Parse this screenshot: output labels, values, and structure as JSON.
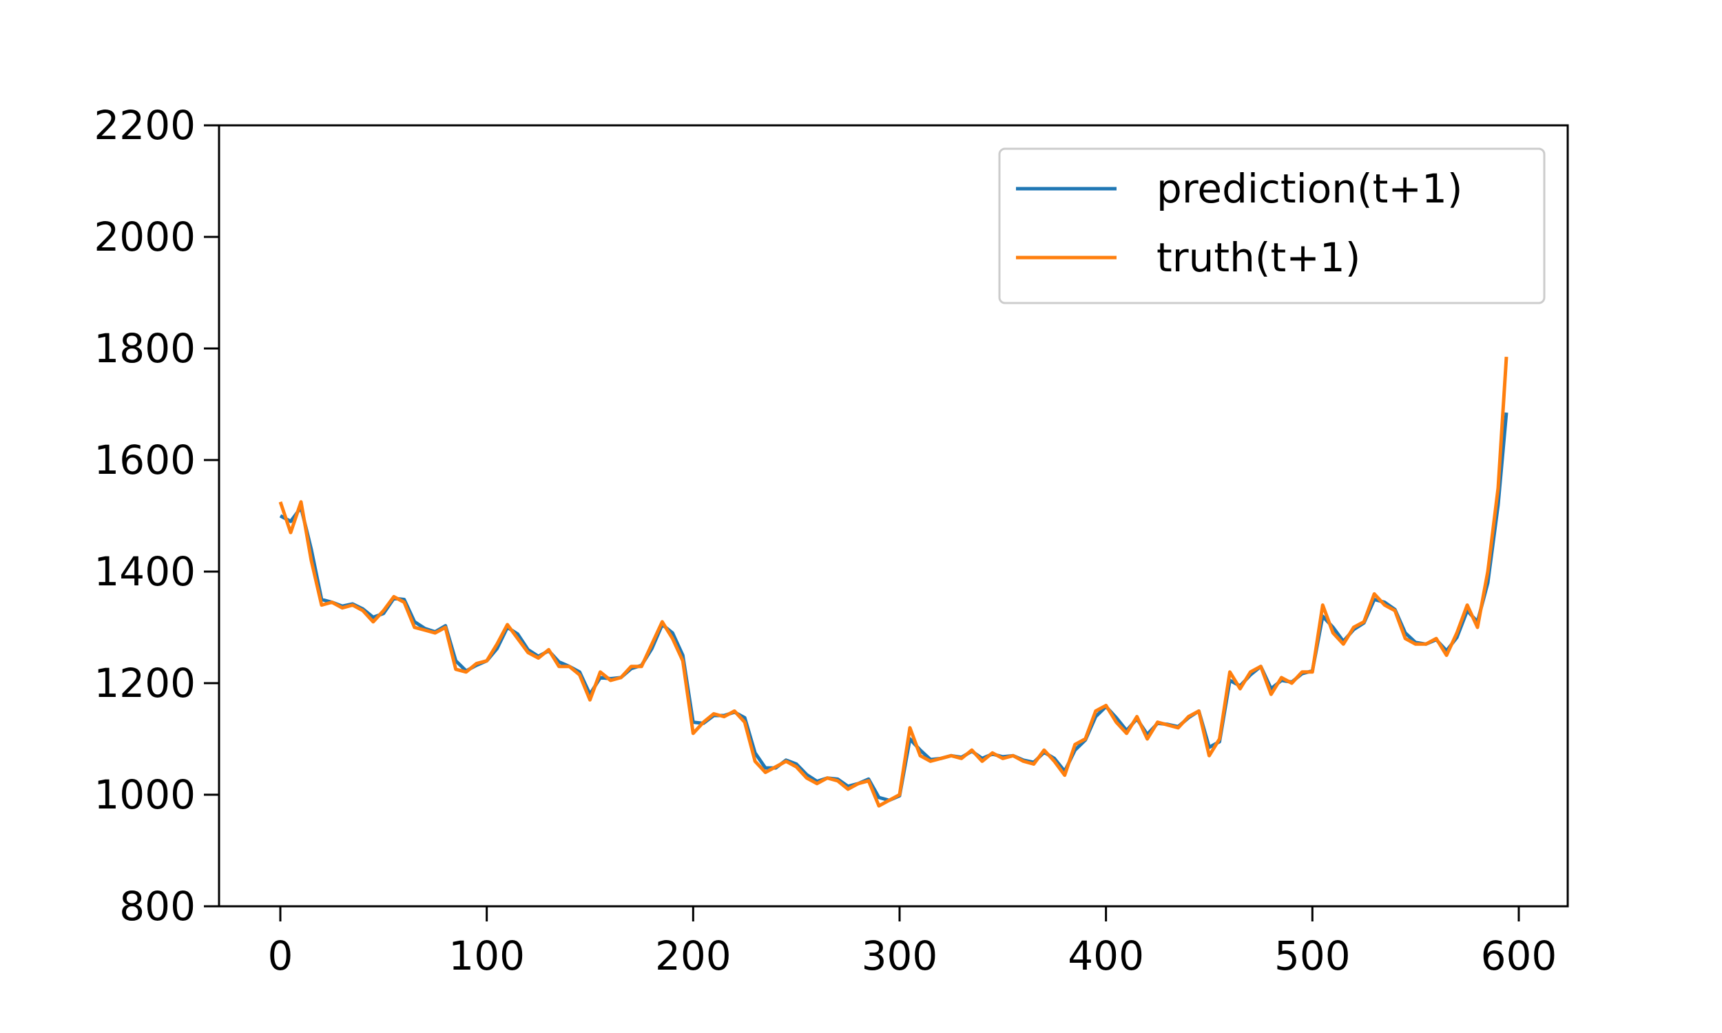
{
  "chart_data": {
    "type": "line",
    "x": [
      0,
      5,
      10,
      15,
      20,
      25,
      30,
      35,
      40,
      45,
      50,
      55,
      60,
      65,
      70,
      75,
      80,
      85,
      90,
      95,
      100,
      105,
      110,
      115,
      120,
      125,
      130,
      135,
      140,
      145,
      150,
      155,
      160,
      165,
      170,
      175,
      180,
      185,
      190,
      195,
      200,
      205,
      210,
      215,
      220,
      225,
      230,
      235,
      240,
      245,
      250,
      255,
      260,
      265,
      270,
      275,
      280,
      285,
      290,
      295,
      300,
      305,
      310,
      315,
      320,
      325,
      330,
      335,
      340,
      345,
      350,
      355,
      360,
      365,
      370,
      375,
      380,
      385,
      390,
      395,
      400,
      405,
      410,
      415,
      420,
      425,
      430,
      435,
      440,
      445,
      450,
      455,
      460,
      465,
      470,
      475,
      480,
      485,
      490,
      495,
      500,
      505,
      510,
      515,
      520,
      525,
      530,
      535,
      540,
      545,
      550,
      555,
      560,
      565,
      570,
      575,
      580,
      585,
      590,
      594
    ],
    "series": [
      {
        "name": "prediction(t+1)",
        "color": "#1f77b4",
        "values": [
          1500,
          1490,
          1515,
          1440,
          1350,
          1345,
          1338,
          1342,
          1333,
          1318,
          1325,
          1352,
          1350,
          1310,
          1298,
          1292,
          1303,
          1240,
          1222,
          1232,
          1240,
          1262,
          1300,
          1288,
          1260,
          1248,
          1258,
          1238,
          1230,
          1220,
          1180,
          1210,
          1208,
          1210,
          1226,
          1232,
          1262,
          1305,
          1290,
          1250,
          1130,
          1128,
          1142,
          1142,
          1148,
          1138,
          1075,
          1048,
          1048,
          1062,
          1055,
          1036,
          1024,
          1030,
          1028,
          1015,
          1020,
          1028,
          995,
          990,
          998,
          1100,
          1080,
          1063,
          1065,
          1070,
          1067,
          1078,
          1065,
          1073,
          1068,
          1070,
          1062,
          1058,
          1076,
          1065,
          1042,
          1080,
          1098,
          1140,
          1158,
          1138,
          1115,
          1136,
          1108,
          1128,
          1126,
          1122,
          1138,
          1150,
          1085,
          1095,
          1205,
          1195,
          1215,
          1230,
          1190,
          1205,
          1202,
          1217,
          1222,
          1320,
          1300,
          1275,
          1296,
          1308,
          1350,
          1345,
          1332,
          1290,
          1273,
          1270,
          1278,
          1258,
          1282,
          1330,
          1310,
          1380,
          1520,
          1685
        ]
      },
      {
        "name": "truth(t+1)",
        "color": "#ff7f0e",
        "values": [
          1525,
          1470,
          1525,
          1420,
          1340,
          1345,
          1335,
          1340,
          1330,
          1310,
          1330,
          1355,
          1345,
          1300,
          1295,
          1290,
          1300,
          1225,
          1220,
          1235,
          1240,
          1270,
          1305,
          1280,
          1255,
          1245,
          1260,
          1230,
          1230,
          1215,
          1170,
          1220,
          1205,
          1210,
          1230,
          1230,
          1270,
          1310,
          1280,
          1240,
          1110,
          1130,
          1145,
          1140,
          1150,
          1130,
          1060,
          1040,
          1050,
          1060,
          1050,
          1030,
          1020,
          1030,
          1025,
          1010,
          1020,
          1025,
          980,
          990,
          1000,
          1120,
          1070,
          1060,
          1065,
          1070,
          1065,
          1080,
          1060,
          1075,
          1065,
          1070,
          1060,
          1055,
          1080,
          1060,
          1035,
          1090,
          1100,
          1150,
          1160,
          1130,
          1110,
          1140,
          1100,
          1130,
          1125,
          1120,
          1140,
          1150,
          1070,
          1100,
          1220,
          1190,
          1220,
          1230,
          1180,
          1210,
          1200,
          1220,
          1220,
          1340,
          1290,
          1270,
          1300,
          1310,
          1360,
          1340,
          1330,
          1280,
          1270,
          1270,
          1280,
          1250,
          1290,
          1340,
          1300,
          1400,
          1550,
          1785
        ]
      }
    ],
    "xlim": [
      -29.7,
      623.7
    ],
    "ylim": [
      800,
      2200
    ],
    "xticks": [
      0,
      100,
      200,
      300,
      400,
      500,
      600
    ],
    "yticks": [
      800,
      1000,
      1200,
      1400,
      1600,
      1800,
      2000,
      2200
    ],
    "legend": "upper right"
  }
}
